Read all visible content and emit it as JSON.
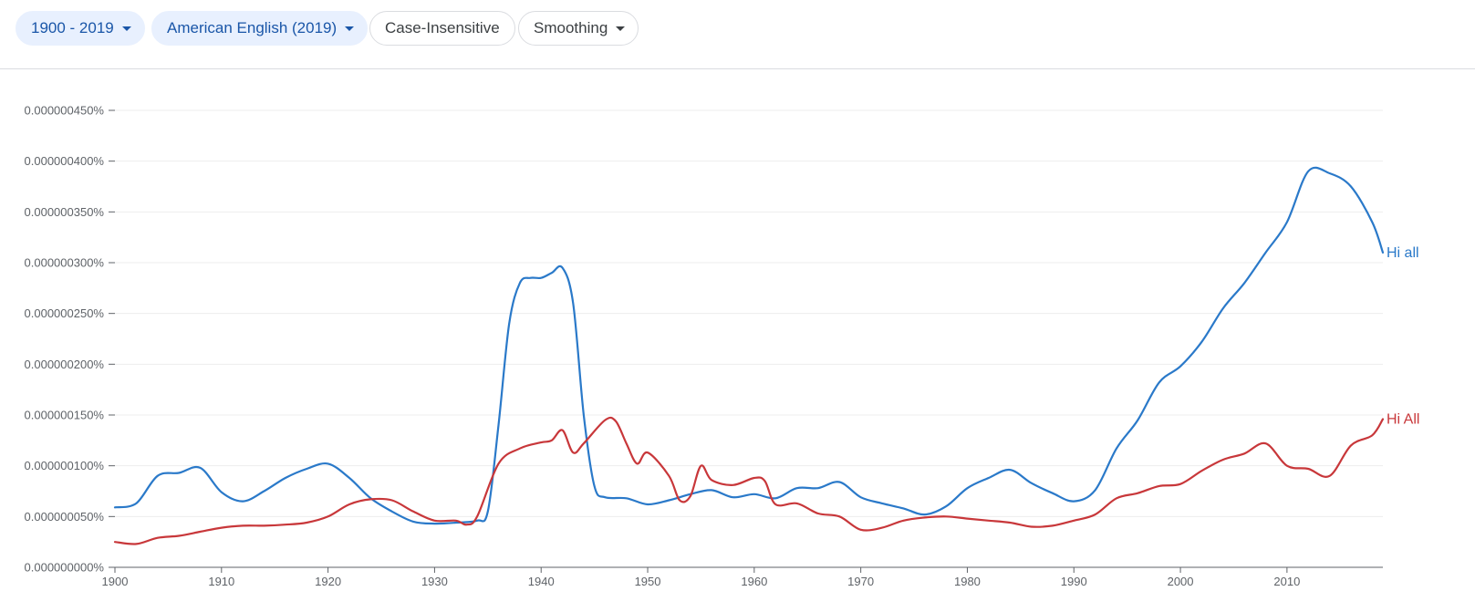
{
  "toolbar": {
    "year_range": "1900 - 2019",
    "corpus": "American English (2019)",
    "case": "Case-Insensitive",
    "smoothing": "Smoothing"
  },
  "colors": {
    "accent": "#1a56a8",
    "series_blue": "#2a79c9",
    "series_red": "#c8373a",
    "grid": "#ededed"
  },
  "chart_data": {
    "type": "line",
    "title": "",
    "xlabel": "",
    "ylabel": "",
    "xlim": [
      1900,
      2019
    ],
    "ylim": [
      0,
      4.5e-07
    ],
    "x_ticks": [
      1900,
      1910,
      1920,
      1930,
      1940,
      1950,
      1960,
      1970,
      1980,
      1990,
      2000,
      2010
    ],
    "y_ticks": [
      "0.000000000%",
      "0.000000050%",
      "0.000000100%",
      "0.000000150%",
      "0.000000200%",
      "0.000000250%",
      "0.000000300%",
      "0.000000350%",
      "0.000000400%",
      "0.000000450%"
    ],
    "y_tick_values": [
      0,
      5e-08,
      1e-07,
      1.5e-07,
      2e-07,
      2.5e-07,
      3e-07,
      3.5e-07,
      4e-07,
      4.5e-07
    ],
    "grid": true,
    "series": [
      {
        "name": "Hi all",
        "color": "#2a79c9",
        "x": [
          1900,
          1902,
          1904,
          1906,
          1908,
          1910,
          1912,
          1914,
          1916,
          1918,
          1920,
          1922,
          1924,
          1926,
          1928,
          1930,
          1932,
          1934,
          1935,
          1936,
          1937,
          1938,
          1939,
          1940,
          1941,
          1942,
          1943,
          1944,
          1945,
          1946,
          1948,
          1950,
          1952,
          1954,
          1956,
          1958,
          1960,
          1962,
          1964,
          1966,
          1968,
          1970,
          1972,
          1974,
          1976,
          1978,
          1980,
          1982,
          1984,
          1986,
          1988,
          1990,
          1992,
          1994,
          1996,
          1998,
          2000,
          2002,
          2004,
          2006,
          2008,
          2010,
          2012,
          2014,
          2016,
          2018,
          2019
        ],
        "values": [
          5.9e-08,
          6.3e-08,
          9e-08,
          9.3e-08,
          9.8e-08,
          7.4e-08,
          6.5e-08,
          7.5e-08,
          8.8e-08,
          9.7e-08,
          1.02e-07,
          8.8e-08,
          6.8e-08,
          5.5e-08,
          4.5e-08,
          4.3e-08,
          4.4e-08,
          4.6e-08,
          5.5e-08,
          1.4e-07,
          2.4e-07,
          2.8e-07,
          2.85e-07,
          2.85e-07,
          2.9e-07,
          2.95e-07,
          2.6e-07,
          1.5e-07,
          8e-08,
          6.9e-08,
          6.8e-08,
          6.2e-08,
          6.6e-08,
          7.2e-08,
          7.6e-08,
          6.9e-08,
          7.2e-08,
          6.8e-08,
          7.8e-08,
          7.8e-08,
          8.4e-08,
          6.9e-08,
          6.3e-08,
          5.8e-08,
          5.2e-08,
          6e-08,
          7.8e-08,
          8.8e-08,
          9.6e-08,
          8.3e-08,
          7.3e-08,
          6.5e-08,
          7.6e-08,
          1.17e-07,
          1.45e-07,
          1.82e-07,
          1.98e-07,
          2.22e-07,
          2.55e-07,
          2.8e-07,
          3.1e-07,
          3.4e-07,
          3.9e-07,
          3.88e-07,
          3.75e-07,
          3.4e-07,
          3.1e-07
        ]
      },
      {
        "name": "Hi All",
        "color": "#c8373a",
        "x": [
          1900,
          1902,
          1904,
          1906,
          1908,
          1910,
          1912,
          1914,
          1916,
          1918,
          1920,
          1922,
          1924,
          1926,
          1928,
          1930,
          1932,
          1933,
          1934,
          1936,
          1938,
          1940,
          1941,
          1942,
          1943,
          1944,
          1946,
          1947,
          1948,
          1949,
          1950,
          1952,
          1953,
          1954,
          1955,
          1956,
          1958,
          1960,
          1961,
          1962,
          1964,
          1966,
          1968,
          1970,
          1972,
          1974,
          1976,
          1978,
          1980,
          1982,
          1984,
          1986,
          1988,
          1990,
          1992,
          1994,
          1996,
          1998,
          2000,
          2002,
          2004,
          2006,
          2008,
          2010,
          2012,
          2014,
          2016,
          2018,
          2019
        ],
        "values": [
          2.5e-08,
          2.3e-08,
          2.9e-08,
          3.1e-08,
          3.5e-08,
          3.9e-08,
          4.1e-08,
          4.1e-08,
          4.2e-08,
          4.4e-08,
          5e-08,
          6.2e-08,
          6.7e-08,
          6.6e-08,
          5.5e-08,
          4.6e-08,
          4.6e-08,
          4.2e-08,
          5e-08,
          1.02e-07,
          1.17e-07,
          1.23e-07,
          1.25e-07,
          1.35e-07,
          1.13e-07,
          1.22e-07,
          1.45e-07,
          1.44e-07,
          1.22e-07,
          1.02e-07,
          1.13e-07,
          9e-08,
          6.6e-08,
          7e-08,
          1e-07,
          8.6e-08,
          8.1e-08,
          8.8e-08,
          8.5e-08,
          6.2e-08,
          6.3e-08,
          5.3e-08,
          5e-08,
          3.7e-08,
          3.9e-08,
          4.6e-08,
          4.9e-08,
          5e-08,
          4.8e-08,
          4.6e-08,
          4.4e-08,
          4e-08,
          4.1e-08,
          4.6e-08,
          5.2e-08,
          6.8e-08,
          7.3e-08,
          8e-08,
          8.2e-08,
          9.5e-08,
          1.06e-07,
          1.12e-07,
          1.22e-07,
          1e-07,
          9.7e-08,
          9e-08,
          1.2e-07,
          1.3e-07,
          1.46e-07
        ]
      }
    ]
  }
}
